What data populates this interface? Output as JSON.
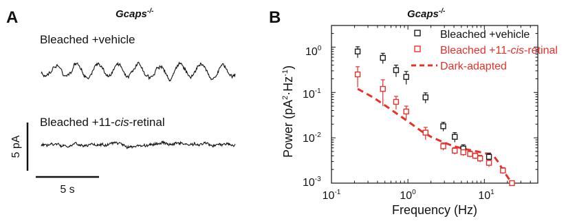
{
  "panel_a": {
    "letter": "A",
    "genotype_base": "Gcaps",
    "genotype_sup": "-/-",
    "trace1_label": "Bleached +vehicle",
    "trace2_prefix": "Bleached +11-",
    "trace2_italic": "cis",
    "trace2_suffix": "-retinal",
    "scale_y_label": "5 pA",
    "scale_x_label": "5 s"
  },
  "panel_b": {
    "letter": "B",
    "genotype_base": "Gcaps",
    "genotype_sup": "-/-",
    "ylabel_main": "Power (pA",
    "ylabel_sup1": "2",
    "ylabel_mid": "·Hz",
    "ylabel_sup2": "-1",
    "ylabel_end": ")",
    "xlabel": "Frequency (Hz)",
    "xtick_labels": [
      {
        "base": "10",
        "exp": "-1"
      },
      {
        "base": "10",
        "exp": "0"
      },
      {
        "base": "10",
        "exp": "1"
      }
    ],
    "ytick_labels": [
      {
        "base": "10",
        "exp": "0"
      },
      {
        "base": "10",
        "exp": "-1"
      },
      {
        "base": "10",
        "exp": "-2"
      },
      {
        "base": "10",
        "exp": "-3"
      }
    ],
    "legend": {
      "vehicle": "Bleached +vehicle",
      "retinal_prefix": "Bleached +11-",
      "retinal_italic": "cis",
      "retinal_suffix": "-retinal",
      "dark": "Dark-adapted"
    }
  },
  "chart_data": {
    "type": "scatter",
    "x_scale": "log",
    "y_scale": "log",
    "xlim": [
      0.1,
      50
    ],
    "ylim": [
      0.001,
      3
    ],
    "series": [
      {
        "name": "Bleached +vehicle",
        "color": "#1a1a1a",
        "marker": "open-square",
        "x": [
          0.22,
          0.47,
          0.7,
          0.95,
          1.7,
          2.9,
          4.1,
          5.3,
          11.5
        ],
        "y": [
          0.8,
          0.58,
          0.31,
          0.22,
          0.078,
          0.018,
          0.0105,
          0.0058,
          0.0038
        ],
        "err": [
          0.22,
          0.15,
          0.09,
          0.07,
          0.02,
          0.004,
          0.0025,
          0.0012,
          0.0008
        ]
      },
      {
        "name": "Bleached +11-cis-retinal",
        "color": "#e8302a",
        "marker": "open-square",
        "x": [
          0.22,
          0.47,
          0.7,
          0.95,
          1.7,
          2.9,
          4.1,
          5.3,
          6.5,
          7.6,
          8.8,
          11.5,
          17.5,
          23.0
        ],
        "y": [
          0.25,
          0.12,
          0.062,
          0.038,
          0.013,
          0.0065,
          0.0052,
          0.0048,
          0.0044,
          0.004,
          0.0035,
          0.0028,
          0.0019,
          0.001
        ],
        "err": [
          0.12,
          0.07,
          0.02,
          0.012,
          0.004,
          0.0012,
          0.0009,
          0.0008,
          0.0007,
          0.0006,
          0.0006,
          0.0005,
          0.0003,
          0.0001
        ]
      },
      {
        "name": "Dark-adapted",
        "color": "#e8302a",
        "style": "dashed-line",
        "x": [
          0.22,
          0.35,
          0.5,
          0.7,
          1.0,
          1.5,
          2.0,
          3.0,
          4.0,
          6.0,
          8.0,
          10.0,
          12.0,
          13.5,
          15.0,
          18.0,
          22.0
        ],
        "y": [
          0.12,
          0.078,
          0.052,
          0.035,
          0.023,
          0.014,
          0.0105,
          0.0078,
          0.0065,
          0.0055,
          0.005,
          0.0046,
          0.0043,
          0.0038,
          0.003,
          0.0018,
          0.0011
        ]
      }
    ]
  }
}
